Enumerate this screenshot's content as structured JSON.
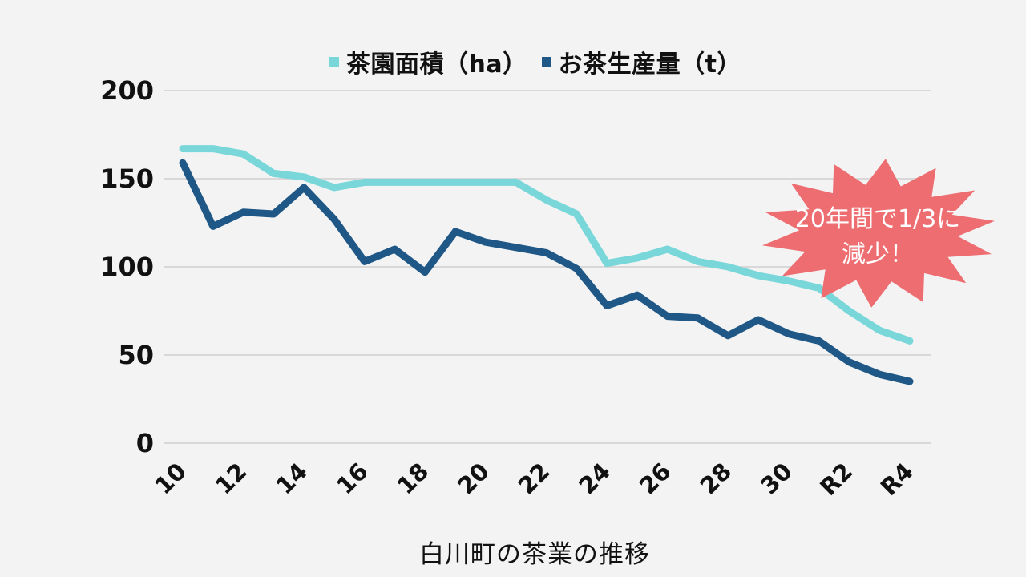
{
  "chart_data": {
    "type": "line",
    "title": "白川町の茶業の推移",
    "x_categories": [
      "10",
      "11",
      "12",
      "13",
      "14",
      "15",
      "16",
      "17",
      "18",
      "19",
      "20",
      "21",
      "22",
      "23",
      "24",
      "25",
      "26",
      "27",
      "28",
      "29",
      "30",
      "R1",
      "R2",
      "R3",
      "R4"
    ],
    "x_tick_indices": [
      0,
      2,
      4,
      6,
      8,
      10,
      12,
      14,
      16,
      18,
      20,
      22,
      24
    ],
    "x_tick_labels": [
      "10",
      "12",
      "14",
      "16",
      "18",
      "20",
      "22",
      "24",
      "26",
      "28",
      "30",
      "R2",
      "R4"
    ],
    "yticks": [
      0,
      50,
      100,
      150,
      200
    ],
    "ylim": [
      0,
      200
    ],
    "grid": "horizontal-only",
    "legend_position": "top-center",
    "series": [
      {
        "name": "茶園面積（ha）",
        "color": "#79d7d9",
        "values": [
          167,
          167,
          164,
          153,
          151,
          145,
          148,
          148,
          148,
          148,
          148,
          148,
          138,
          130,
          102,
          105,
          110,
          103,
          100,
          95,
          92,
          88,
          75,
          64,
          58
        ]
      },
      {
        "name": "お茶生産量（t）",
        "color": "#1f5886",
        "values": [
          159,
          123,
          131,
          130,
          145,
          127,
          103,
          110,
          97,
          120,
          114,
          111,
          108,
          99,
          78,
          84,
          72,
          71,
          61,
          70,
          62,
          58,
          46,
          39,
          35
        ]
      }
    ],
    "annotation": {
      "shape": "starburst",
      "fill": "#ed6d70",
      "text_color": "#ffffff",
      "lines": [
        "20年間で1/3に",
        "減少！"
      ]
    }
  }
}
